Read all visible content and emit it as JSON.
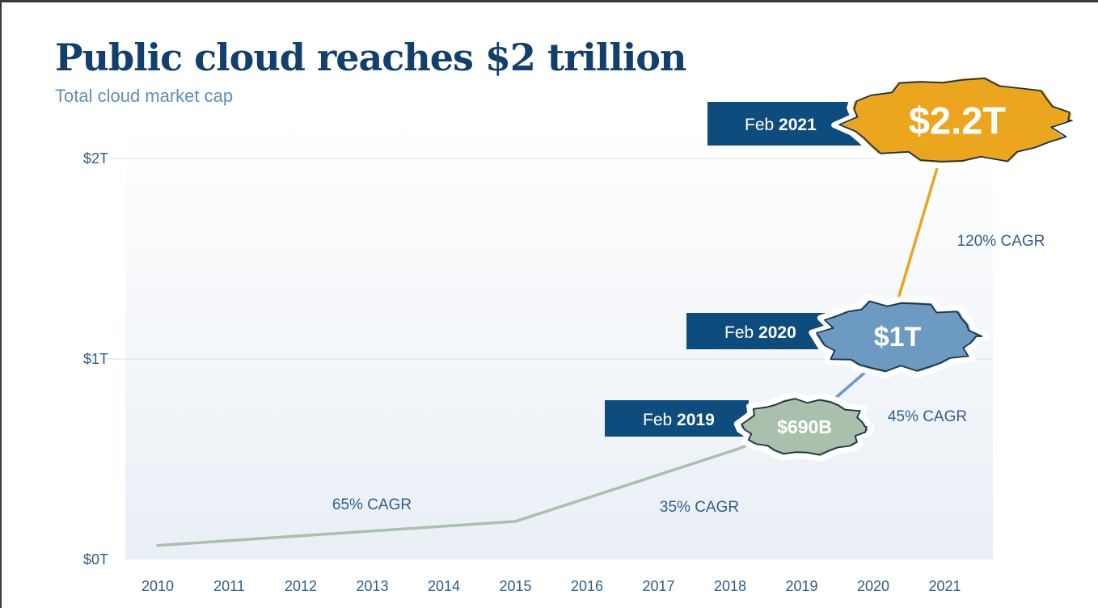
{
  "chart_data": {
    "type": "line",
    "title": "Public cloud reaches $2 trillion",
    "subtitle": "Total cloud market cap",
    "x": [
      "2010",
      "2011",
      "2012",
      "2013",
      "2014",
      "2015",
      "2016",
      "2017",
      "2018",
      "2019",
      "2020",
      "2021"
    ],
    "yticks": [
      "$0T",
      "$1T",
      "$2T"
    ],
    "ylim": [
      0,
      2.2
    ],
    "grid": true,
    "series": [
      {
        "points": [
          {
            "x": 2010,
            "y": 0.07
          },
          {
            "x": 2015,
            "y": 0.19
          },
          {
            "x": 2018.1,
            "y": 0.55
          },
          {
            "x": 2019.1,
            "y": 0.69
          },
          {
            "x": 2020.1,
            "y": 1.0
          },
          {
            "x": 2021.1,
            "y": 2.2
          }
        ]
      }
    ],
    "annotations": {
      "cagr": [
        "65% CAGR",
        "35% CAGR",
        "45% CAGR",
        "120% CAGR"
      ],
      "milestones": [
        {
          "month": "Feb",
          "year": "2019",
          "value": "$690B",
          "color": "#a9c0ad"
        },
        {
          "month": "Feb",
          "year": "2020",
          "value": "$1T",
          "color": "#6d9ac1"
        },
        {
          "month": "Feb",
          "year": "2021",
          "value": "$2.2T",
          "color": "#eca51f"
        }
      ]
    },
    "colors": {
      "title": "#123f6c",
      "subtitle": "#5f8fb4",
      "tag_background": "#0f4c7e",
      "early_line": "#a9c0ad",
      "mid_line": "#6d9ac1",
      "late_line": "#eca51f"
    }
  }
}
